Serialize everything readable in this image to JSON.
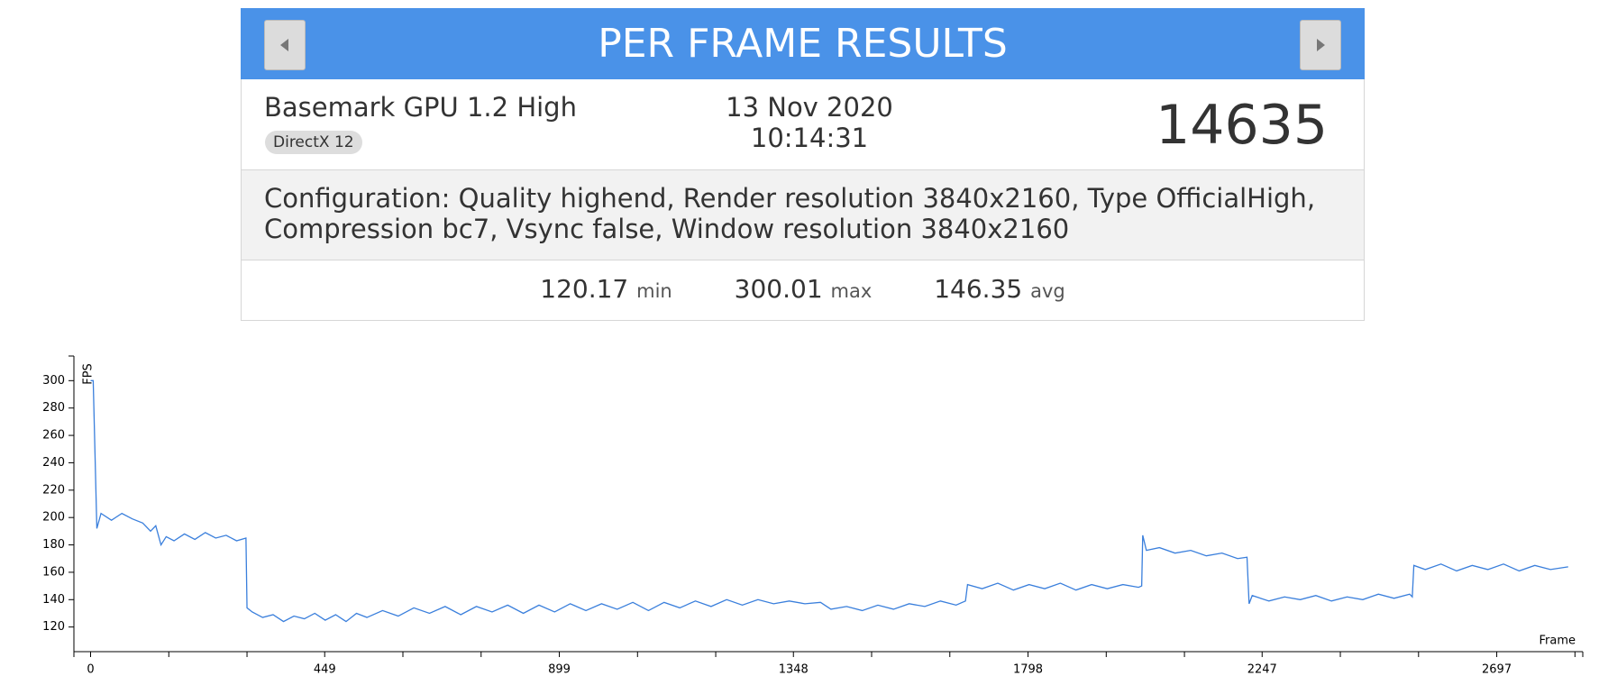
{
  "header": {
    "title": "PER FRAME RESULTS"
  },
  "info": {
    "benchmark": "Basemark GPU 1.2 High",
    "api": "DirectX 12",
    "date": "13 Nov 2020",
    "time": "10:14:31",
    "score": "14635"
  },
  "config": {
    "text": "Configuration: Quality highend, Render resolution 3840x2160, Type OfficialHigh, Compression bc7, Vsync false, Window resolution 3840x2160"
  },
  "stats": [
    {
      "value": "120.17",
      "label": "min"
    },
    {
      "value": "300.01",
      "label": "max"
    },
    {
      "value": "146.35",
      "label": "avg"
    }
  ],
  "chart_data": {
    "type": "line",
    "ylabel": "FPS",
    "xlabel": "Frame",
    "color": "#3a7fdc",
    "xlim": [
      -32,
      2862
    ],
    "ylim": [
      102,
      318
    ],
    "xticks": [
      0,
      449,
      899,
      1348,
      1798,
      2247,
      2697
    ],
    "xminorticks": [
      150,
      300,
      599,
      749,
      1049,
      1199,
      1498,
      1648,
      1948,
      2098,
      2397,
      2547,
      2847
    ],
    "yticks": [
      120,
      140,
      160,
      180,
      200,
      220,
      240,
      260,
      280,
      300
    ],
    "x": [
      0,
      5,
      12,
      20,
      40,
      60,
      80,
      100,
      115,
      125,
      135,
      145,
      160,
      180,
      200,
      220,
      240,
      260,
      280,
      298,
      300,
      310,
      330,
      350,
      370,
      390,
      410,
      430,
      450,
      470,
      490,
      510,
      530,
      560,
      590,
      620,
      650,
      680,
      710,
      740,
      770,
      800,
      830,
      860,
      890,
      920,
      950,
      980,
      1010,
      1040,
      1070,
      1100,
      1130,
      1160,
      1190,
      1220,
      1250,
      1280,
      1310,
      1340,
      1370,
      1400,
      1420,
      1450,
      1480,
      1510,
      1540,
      1570,
      1600,
      1630,
      1660,
      1678,
      1682,
      1710,
      1740,
      1770,
      1800,
      1830,
      1860,
      1890,
      1920,
      1950,
      1980,
      2010,
      2016,
      2018,
      2025,
      2050,
      2080,
      2110,
      2140,
      2170,
      2200,
      2218,
      2222,
      2228,
      2260,
      2290,
      2320,
      2350,
      2380,
      2410,
      2440,
      2470,
      2500,
      2530,
      2535,
      2538,
      2560,
      2590,
      2620,
      2650,
      2680,
      2710,
      2740,
      2770,
      2800,
      2834
    ],
    "values": [
      300,
      300,
      192,
      203,
      198,
      203,
      199,
      196,
      190,
      194,
      180,
      186,
      183,
      188,
      184,
      189,
      185,
      187,
      183,
      185,
      134,
      131,
      127,
      129,
      124,
      128,
      126,
      130,
      125,
      129,
      124,
      130,
      127,
      132,
      128,
      134,
      130,
      135,
      129,
      135,
      131,
      136,
      130,
      136,
      131,
      137,
      132,
      137,
      133,
      138,
      132,
      138,
      134,
      139,
      135,
      140,
      136,
      140,
      137,
      139,
      137,
      138,
      133,
      135,
      132,
      136,
      133,
      137,
      135,
      139,
      136,
      139,
      151,
      148,
      152,
      147,
      151,
      148,
      152,
      147,
      151,
      148,
      151,
      149,
      150,
      187,
      176,
      178,
      174,
      176,
      172,
      174,
      170,
      171,
      137,
      143,
      139,
      142,
      140,
      143,
      139,
      142,
      140,
      144,
      141,
      144,
      142,
      165,
      162,
      166,
      161,
      165,
      162,
      166,
      161,
      165,
      162,
      164
    ]
  }
}
